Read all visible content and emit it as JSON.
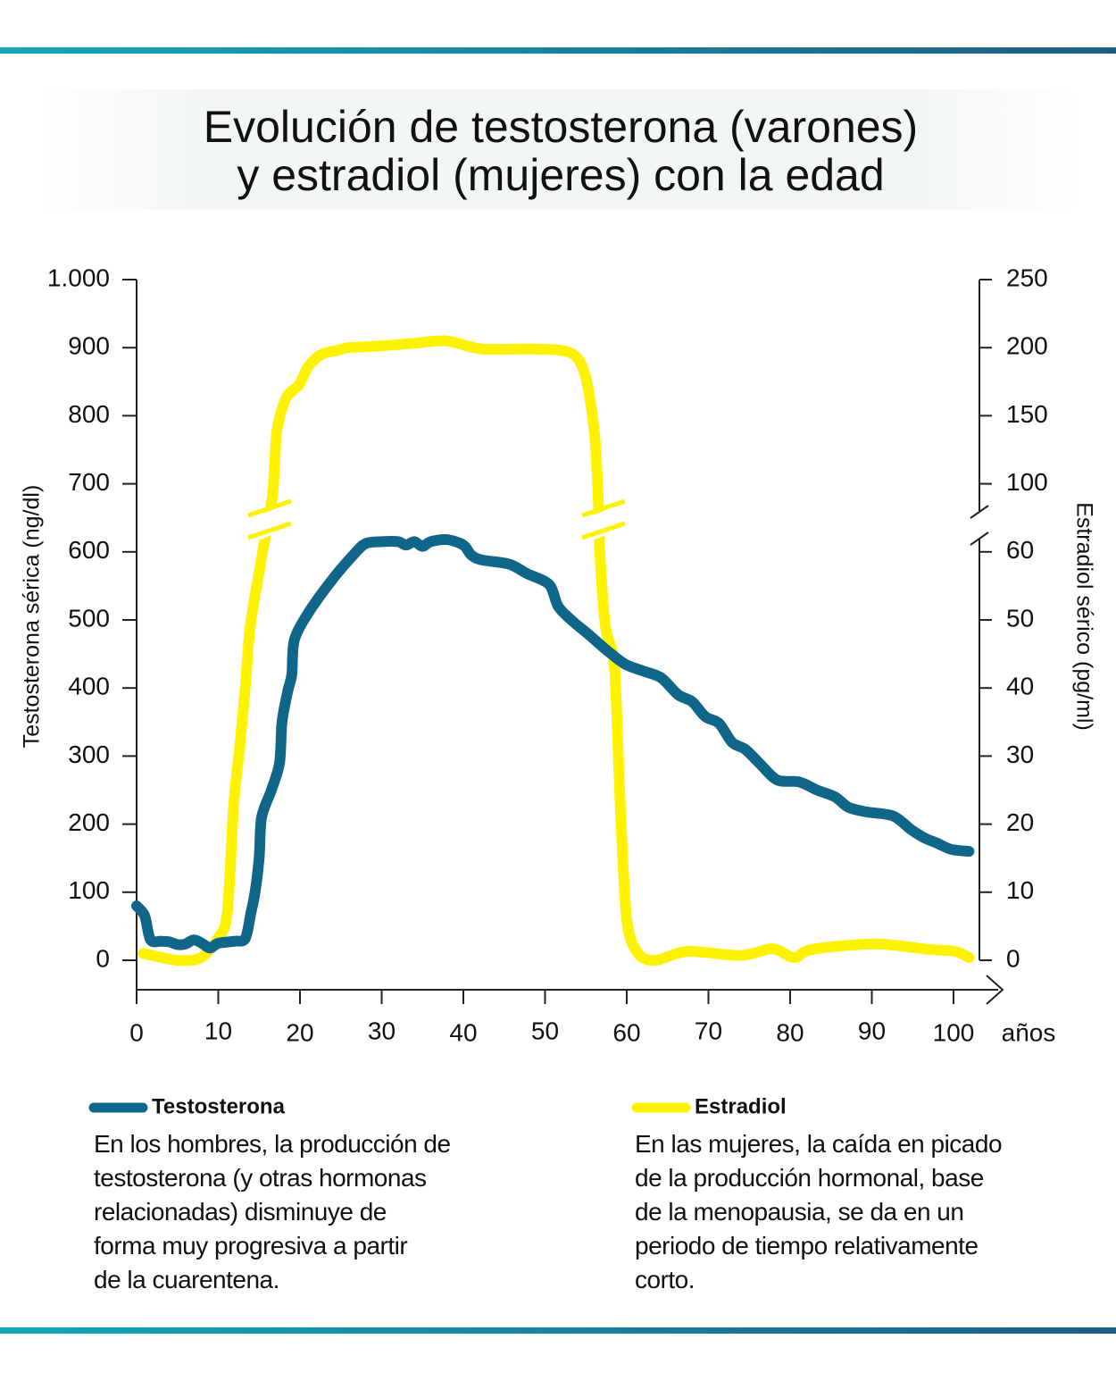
{
  "chart_data": {
    "type": "line",
    "title": [
      "Evolución de testosterona (varones)",
      "y estradiol (mujeres) con la edad"
    ],
    "y_label": "Testosterona sérica (ng/dl)",
    "y2_label": "Estradiol sérico (pg/ml)",
    "x_label": "años",
    "xlim": [
      0,
      103
    ],
    "xticks": [
      0,
      10,
      20,
      30,
      40,
      50,
      60,
      70,
      80,
      90,
      100
    ],
    "ylim": [
      0,
      1000
    ],
    "yticks": [
      0,
      100,
      200,
      300,
      400,
      500,
      600,
      700,
      800,
      900,
      {
        "value": 1000,
        "label": "1.000"
      }
    ],
    "y2lim": [
      0,
      250
    ],
    "y2ticks": [
      0,
      10,
      20,
      30,
      40,
      50,
      60,
      100,
      150,
      200,
      250
    ],
    "series": [
      {
        "name": "Testosterona",
        "color": "#0f6688",
        "x": [
          0,
          1,
          1.7,
          3,
          4,
          5,
          6,
          7,
          8,
          9,
          10,
          12,
          13.3,
          14,
          14.5,
          15,
          15.3,
          16.5,
          17.5,
          17.8,
          18.5,
          19,
          19.3,
          21,
          24,
          26.5,
          28,
          30,
          32,
          33,
          34,
          35,
          36,
          38,
          40,
          41,
          42.3,
          45.6,
          47.8,
          50.5,
          51.6,
          53.2,
          55.4,
          57.6,
          59.8,
          62,
          64.2,
          66.3,
          68,
          69.6,
          71.3,
          72.9,
          74.5,
          76.2,
          78.4,
          81.1,
          83.3,
          85.5,
          87.1,
          89.3,
          92.6,
          94.8,
          96.4,
          98,
          99.7,
          101.9
        ],
        "values": [
          80,
          65,
          30,
          28,
          27,
          23,
          24,
          30,
          25,
          18,
          25,
          28,
          32,
          70,
          100,
          150,
          210,
          250,
          290,
          350,
          395,
          420,
          470,
          510,
          560,
          595,
          612,
          615,
          615,
          610,
          615,
          608,
          615,
          618,
          610,
          595,
          588,
          582,
          568,
          552,
          520,
          500,
          478,
          455,
          435,
          425,
          415,
          390,
          380,
          358,
          348,
          320,
          310,
          290,
          265,
          262,
          250,
          240,
          225,
          218,
          212,
          192,
          180,
          172,
          163,
          160
        ]
      },
      {
        "name": "Estradiol",
        "color": "#fff200",
        "axis": "y2",
        "x": [
          0.8,
          5,
          7.9,
          10,
          11.1,
          11.9,
          12.6,
          13.3,
          13.9,
          15,
          15.5,
          16.6,
          16.9,
          17.2,
          18.3,
          19.9,
          21,
          22.6,
          24.6,
          25.9,
          29.2,
          33.6,
          37.9,
          42.3,
          48.9,
          53.2,
          54.9,
          56,
          56.5,
          56.7,
          57.4,
          58.5,
          59.2,
          60,
          61.4,
          63.6,
          67.4,
          74,
          77.8,
          80.5,
          82.7,
          90.4,
          96.9,
          100.2,
          101.9
        ],
        "values": [
          1,
          0,
          0.4,
          3.3,
          7,
          23,
          31,
          40,
          49,
          57,
          62,
          92,
          114,
          140,
          163,
          173,
          186,
          195,
          198,
          200,
          201,
          203,
          205,
          199,
          199,
          196,
          180,
          140,
          94,
          60,
          49,
          43,
          23,
          6,
          1,
          0,
          1.3,
          0.7,
          1.7,
          0.4,
          1.6,
          2.4,
          1.6,
          1.3,
          0.4
        ]
      }
    ],
    "annotations": [
      [
        "En los hombres, la producción de",
        "testosterona (y otras hormonas",
        "relacionadas) disminuye de",
        "forma muy progresiva a partir",
        "de la cuarentena."
      ],
      [
        "En las mujeres, la caída en picado",
        "de la producción hormonal, base",
        "de la menopausia, se da en un",
        "periodo de tiempo relativamente",
        "corto."
      ]
    ]
  }
}
